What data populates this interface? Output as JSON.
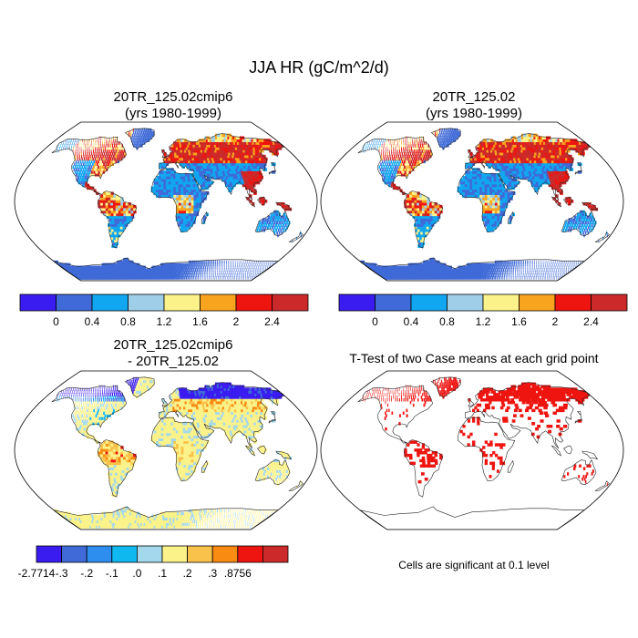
{
  "title": "JJA HR (gC/m^2/d)",
  "panels": {
    "case1": {
      "title": "20TR_125.02cmip6",
      "subtitle": "(yrs 1980-1999)"
    },
    "case2": {
      "title": "20TR_125.02",
      "subtitle": "(yrs 1980-1999)"
    },
    "diff": {
      "title": "20TR_125.02cmip6",
      "subtitle": "- 20TR_125.02"
    },
    "ttest": {
      "title": "T-Test of two Case means at each grid point",
      "note": "Cells are significant at 0.1 level"
    }
  },
  "colorbars": {
    "main": {
      "colors": [
        "#3a1cf0",
        "#3f6ad8",
        "#10a6f0",
        "#9fcfe8",
        "#fbf28a",
        "#f9a41e",
        "#ee1410",
        "#cc2a2a"
      ],
      "labels": [
        "0",
        "0.4",
        "0.8",
        "1.2",
        "1.6",
        "2",
        "2.4"
      ]
    },
    "diff": {
      "colors": [
        "#3a1cf0",
        "#3f6ad8",
        "#2e8ef0",
        "#10b8f0",
        "#a4d8ec",
        "#fbf28a",
        "#f9c24a",
        "#f98a12",
        "#ee1410",
        "#cc2a2a"
      ],
      "labels": [
        "-2.7714",
        "-.3",
        "-.2",
        "-.1",
        ".0",
        ".1",
        ".2",
        ".3",
        ".8756"
      ]
    }
  },
  "colors": {
    "land_base": "#3f6ad8",
    "ocean": "#ffffff",
    "diff_base": "#fbf28a",
    "significant": "#ee1410"
  }
}
